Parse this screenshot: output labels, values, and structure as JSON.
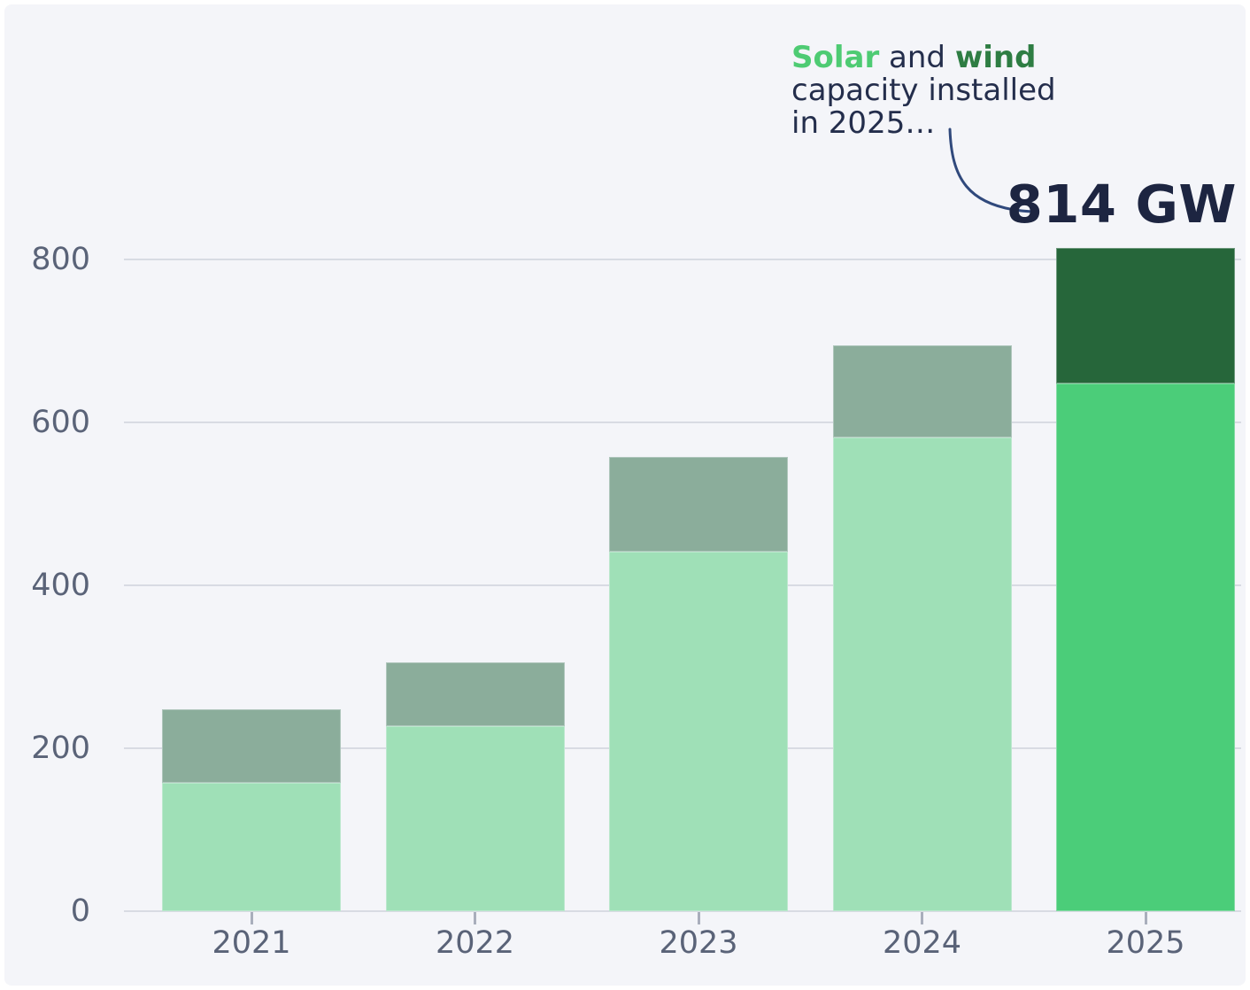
{
  "annotation": {
    "solar_word": "Solar",
    "and_word": " and ",
    "wind_word": "wind",
    "line2": "capacity installed",
    "line3": "in 2025…",
    "value_label": "814 GW"
  },
  "colors": {
    "page_bg": "#ffffff",
    "panel_bg": "#f4f5f9",
    "gridline": "#d8dbe3",
    "axis_label": "#5a6378",
    "tick": "#a9aebc",
    "solar": "#9fe0b7",
    "wind": "#8bad9b",
    "solar_highlight": "#4bcd79",
    "wind_highlight": "#26663a",
    "annotation_solar_text": "#4ecb73",
    "annotation_wind_text": "#2e7d43",
    "annotation_text": "#242e4c",
    "value_text": "#1d2541",
    "connector": "#30497c"
  },
  "chart_data": {
    "type": "bar",
    "stacked": true,
    "unit": "GW",
    "title": "Solar and wind capacity installed in 2025…",
    "categories": [
      "2021",
      "2022",
      "2023",
      "2024",
      "2025"
    ],
    "series": [
      {
        "name": "Solar",
        "values": [
          158,
          227,
          441,
          581,
          648
        ]
      },
      {
        "name": "Wind",
        "values": [
          90,
          78,
          117,
          114,
          166
        ]
      }
    ],
    "totals": [
      248,
      305,
      558,
      695,
      814
    ],
    "highlight_category": "2025",
    "highlight_total_label": "814 GW",
    "yticks": [
      0,
      200,
      400,
      600,
      800
    ],
    "ylim": [
      0,
      870
    ],
    "grid": "horizontal",
    "legend": "none",
    "xlabel": "",
    "ylabel": ""
  }
}
